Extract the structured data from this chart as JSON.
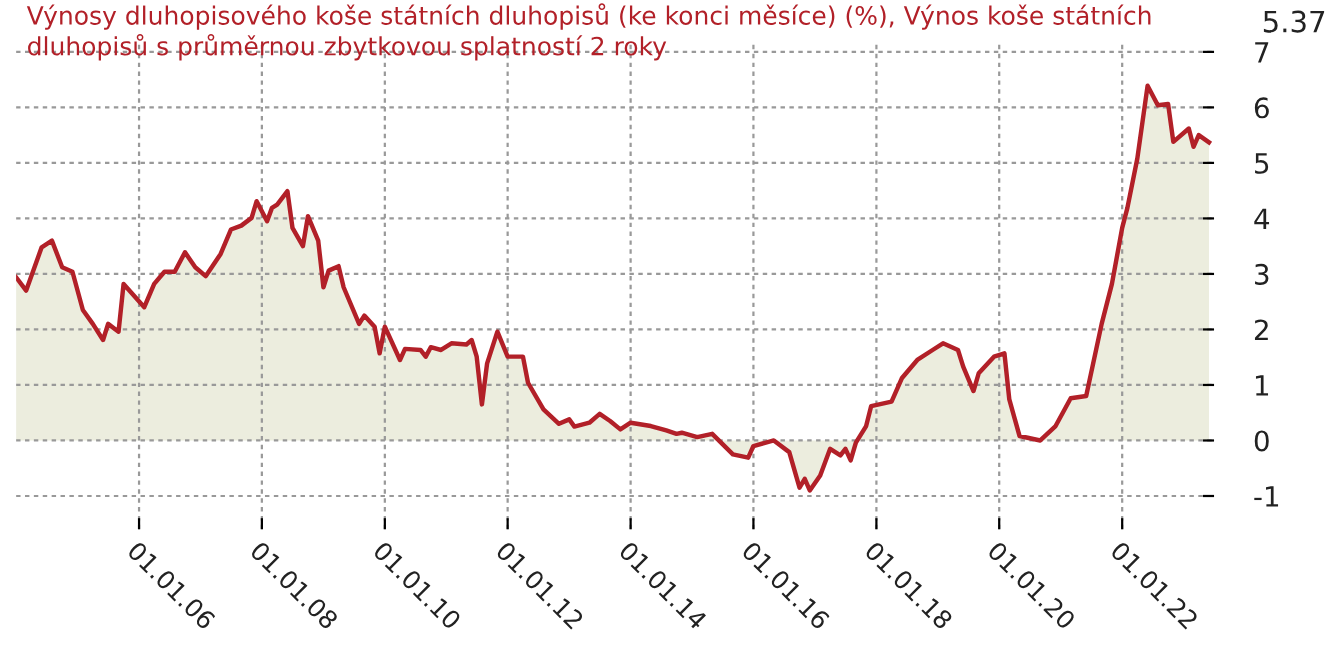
{
  "chart_data": {
    "type": "area",
    "title": "Výnosy dluhopisového koše státních dluhopisů (ke konci měsíce) (%), Výnos koše státních dluhopisů s průměrnou zbytkovou splatností 2 roky",
    "annotations": [
      "5.37"
    ],
    "x": [
      "2004-01",
      "2004-03",
      "2004-06",
      "2004-08",
      "2004-10",
      "2004-12",
      "2005-02",
      "2005-04",
      "2005-06",
      "2005-07",
      "2005-09",
      "2005-10",
      "2006-02",
      "2006-04",
      "2006-06",
      "2006-08",
      "2006-10",
      "2006-12",
      "2007-02",
      "2007-05",
      "2007-07",
      "2007-09",
      "2007-11",
      "2007-12",
      "2008-02",
      "2008-03",
      "2008-04",
      "2008-06",
      "2008-07",
      "2008-09",
      "2008-10",
      "2008-12",
      "2009-01",
      "2009-02",
      "2009-04",
      "2009-05",
      "2009-08",
      "2009-09",
      "2009-11",
      "2009-12",
      "2010-01",
      "2010-04",
      "2010-05",
      "2010-08",
      "2010-09",
      "2010-10",
      "2010-12",
      "2011-02",
      "2011-05",
      "2011-06",
      "2011-07",
      "2011-08",
      "2011-09",
      "2011-11",
      "2012-01",
      "2012-04",
      "2012-05",
      "2012-08",
      "2012-11",
      "2013-01",
      "2013-02",
      "2013-05",
      "2013-07",
      "2013-09",
      "2013-11",
      "2014-01",
      "2014-05",
      "2014-08",
      "2014-10",
      "2014-11",
      "2015-02",
      "2015-05",
      "2015-09",
      "2015-12",
      "2016-01",
      "2016-05",
      "2016-08",
      "2016-10",
      "2016-11",
      "2016-12",
      "2017-02",
      "2017-04",
      "2017-06",
      "2017-07",
      "2017-08",
      "2017-09",
      "2017-11",
      "2017-12",
      "2018-04",
      "2018-06",
      "2018-09",
      "2018-12",
      "2019-02",
      "2019-05",
      "2019-06",
      "2019-08",
      "2019-09",
      "2019-12",
      "2020-02",
      "2020-03",
      "2020-05",
      "2020-09",
      "2020-12",
      "2021-03",
      "2021-06",
      "2021-09",
      "2021-11",
      "2022-01",
      "2022-02",
      "2022-04",
      "2022-06",
      "2022-08",
      "2022-10",
      "2022-11",
      "2023-02",
      "2023-03",
      "2023-04",
      "2023-06"
    ],
    "series": [
      {
        "color": "#b22028",
        "values": [
          2.94,
          2.7,
          3.48,
          3.6,
          3.12,
          3.04,
          2.35,
          2.1,
          1.81,
          2.1,
          1.96,
          2.82,
          2.4,
          2.82,
          3.04,
          3.04,
          3.39,
          3.12,
          2.96,
          3.36,
          3.8,
          3.87,
          4.01,
          4.31,
          3.95,
          4.19,
          4.25,
          4.49,
          3.83,
          3.5,
          4.04,
          3.6,
          2.76,
          3.06,
          3.14,
          2.76,
          2.1,
          2.25,
          2.05,
          1.57,
          2.05,
          1.45,
          1.65,
          1.63,
          1.51,
          1.68,
          1.63,
          1.75,
          1.73,
          1.81,
          1.51,
          0.65,
          1.39,
          1.96,
          1.51,
          1.51,
          1.04,
          0.56,
          0.3,
          0.38,
          0.25,
          0.32,
          0.48,
          0.35,
          0.2,
          0.32,
          0.26,
          0.18,
          0.12,
          0.14,
          0.06,
          0.12,
          -0.25,
          -0.31,
          -0.1,
          0,
          -0.21,
          -0.85,
          -0.69,
          -0.9,
          -0.63,
          -0.15,
          -0.27,
          -0.15,
          -0.36,
          -0.04,
          0.26,
          0.62,
          0.7,
          1.12,
          1.45,
          1.63,
          1.75,
          1.63,
          1.33,
          0.89,
          1.21,
          1.51,
          1.57,
          0.74,
          0.08,
          0,
          0.26,
          0.76,
          0.8,
          2.1,
          2.82,
          3.83,
          4.19,
          5.08,
          6.39,
          6.04,
          6.06,
          5.38,
          5.62,
          5.29,
          5.5,
          5.37
        ]
      }
    ],
    "xlim": [
      "2004-01",
      "2023-07"
    ],
    "xticks": [
      {
        "value": "2006-01-01",
        "label": "01.01.06"
      },
      {
        "value": "2008-01-01",
        "label": "01.01.08"
      },
      {
        "value": "2010-01-01",
        "label": "01.01.10"
      },
      {
        "value": "2012-01-01",
        "label": "01.01.12"
      },
      {
        "value": "2014-01-01",
        "label": "01.01.14"
      },
      {
        "value": "2016-01-01",
        "label": "01.01.16"
      },
      {
        "value": "2018-01-01",
        "label": "01.01.18"
      },
      {
        "value": "2020-01-01",
        "label": "01.01.20"
      },
      {
        "value": "2022-01-01",
        "label": "01.01.22"
      }
    ],
    "ylim": [
      -1.6,
      7.15
    ],
    "yticks": [
      -1,
      0,
      1,
      2,
      3,
      4,
      5,
      6,
      7
    ],
    "grid": true,
    "legend": false
  }
}
